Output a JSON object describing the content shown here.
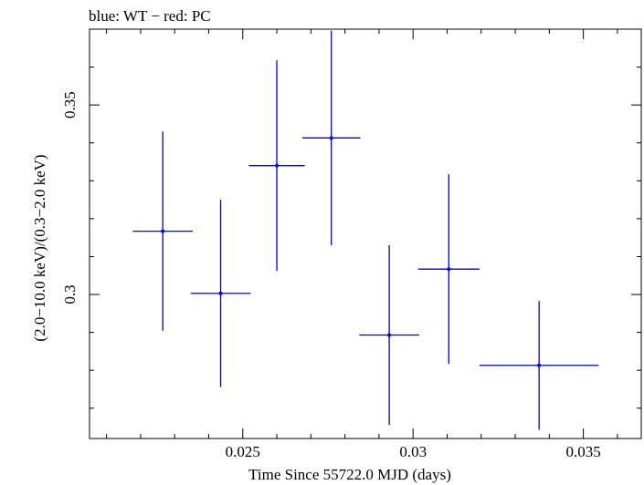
{
  "chart_data": {
    "type": "scatter",
    "title": "blue: WT − red: PC",
    "xlabel": "Time Since 55722.0 MJD (days)",
    "ylabel": "(2.0−10.0 keV)/(0.3−2.0 keV)",
    "xlim": [
      0.0205,
      0.0367
    ],
    "ylim": [
      0.262,
      0.37
    ],
    "x_ticks": [
      {
        "value": 0.025,
        "label": "0.025"
      },
      {
        "value": 0.03,
        "label": "0.03"
      },
      {
        "value": 0.035,
        "label": "0.035"
      }
    ],
    "y_ticks": [
      {
        "value": 0.3,
        "label": "0.3"
      },
      {
        "value": 0.35,
        "label": "0.35"
      }
    ],
    "x_minor_step": 0.001,
    "y_minor_step": 0.01,
    "series": [
      {
        "name": "WT",
        "color": "#0000e0",
        "points": [
          {
            "x": 0.02265,
            "xerr": 0.00088,
            "y": 0.3167,
            "yerr": 0.0263
          },
          {
            "x": 0.02435,
            "xerr": 0.00088,
            "y": 0.3003,
            "yerr": 0.0247
          },
          {
            "x": 0.026,
            "xerr": 0.00082,
            "y": 0.334,
            "yerr": 0.0278
          },
          {
            "x": 0.0276,
            "xerr": 0.00085,
            "y": 0.3413,
            "yerr": 0.0283
          },
          {
            "x": 0.0293,
            "xerr": 0.00088,
            "y": 0.2893,
            "yerr": 0.0237
          },
          {
            "x": 0.03105,
            "xerr": 0.0009,
            "y": 0.3067,
            "yerr": 0.025
          },
          {
            "x": 0.0337,
            "xerr": 0.00175,
            "y": 0.2813,
            "yerr": 0.017
          }
        ]
      }
    ]
  }
}
